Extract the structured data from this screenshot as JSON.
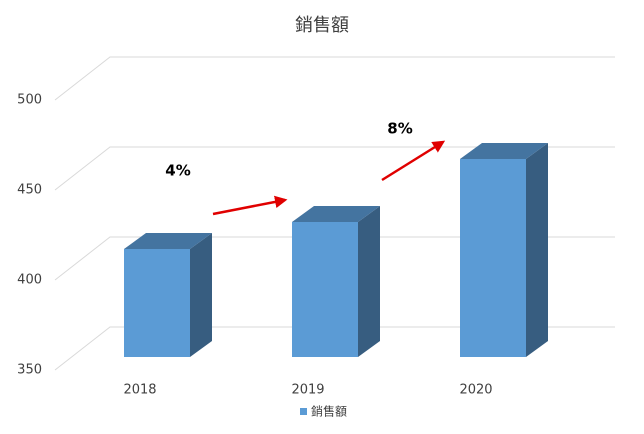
{
  "chart_data": {
    "type": "bar3d",
    "title": "銷售額",
    "categories": [
      "2018",
      "2019",
      "2020"
    ],
    "series": [
      {
        "name": "銷售額",
        "color": "#5b9bd5",
        "values": [
          410,
          425,
          460
        ]
      }
    ],
    "ylim": [
      350,
      500
    ],
    "yticks": [
      350,
      400,
      450,
      500
    ],
    "grid": true,
    "legend": "bottom",
    "annotations": [
      "4%",
      "8%"
    ]
  }
}
